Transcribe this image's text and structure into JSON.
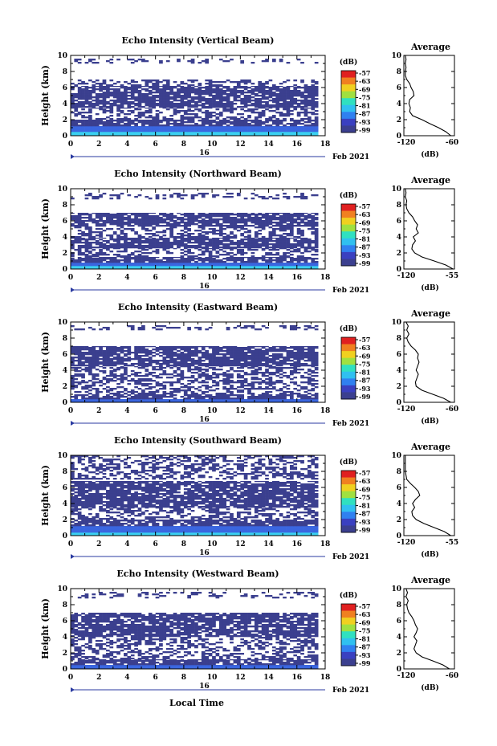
{
  "figure": {
    "xlabel": "Local Time",
    "date_day": "16",
    "date_month_year": "Feb 2021"
  },
  "chart_data": [
    {
      "type": "heatmap",
      "title": "Echo Intensity (Vertical Beam)",
      "ylabel": "Height (km)",
      "xlim": [
        0,
        18
      ],
      "ylim": [
        0,
        10
      ],
      "xticks": [
        0,
        2,
        4,
        6,
        8,
        10,
        12,
        14,
        16,
        18
      ],
      "yticks": [
        0,
        2,
        4,
        6,
        8,
        10
      ],
      "data_extent_hours": 17.5,
      "colorbar": {
        "unit": "(dB)",
        "ticks": [
          "-57",
          "-63",
          "-69",
          "-75",
          "-81",
          "-87",
          "-93",
          "-99"
        ]
      },
      "layers": [
        {
          "h": [
            0.0,
            0.5
          ],
          "level": "strong"
        },
        {
          "h": [
            0.5,
            1.2
          ],
          "level": "medium"
        },
        {
          "h": [
            1.2,
            2.0
          ],
          "level": "weak"
        },
        {
          "h": [
            2.0,
            3.5
          ],
          "level": "sparse"
        },
        {
          "h": [
            3.5,
            6.2
          ],
          "level": "weak"
        },
        {
          "h": [
            6.2,
            7.0
          ],
          "level": "sparse"
        },
        {
          "h": [
            9.0,
            9.6
          ],
          "level": "scattered"
        }
      ]
    },
    {
      "type": "heatmap",
      "title": "Echo Intensity (Northward Beam)",
      "ylabel": "Height (km)",
      "xlim": [
        0,
        18
      ],
      "ylim": [
        0,
        10
      ],
      "xticks": [
        0,
        2,
        4,
        6,
        8,
        10,
        12,
        14,
        16,
        18
      ],
      "yticks": [
        0,
        2,
        4,
        6,
        8,
        10
      ],
      "data_extent_hours": 17.5,
      "colorbar": {
        "unit": "(dB)",
        "ticks": [
          "-57",
          "-63",
          "-69",
          "-75",
          "-81",
          "-87",
          "-93",
          "-99"
        ]
      },
      "layers": [
        {
          "h": [
            0.0,
            0.4
          ],
          "level": "strong"
        },
        {
          "h": [
            0.4,
            0.8
          ],
          "level": "medium"
        },
        {
          "h": [
            0.8,
            1.5
          ],
          "level": "weak"
        },
        {
          "h": [
            1.5,
            2.6
          ],
          "level": "sparse"
        },
        {
          "h": [
            2.6,
            3.9
          ],
          "level": "weak"
        },
        {
          "h": [
            3.9,
            5.3
          ],
          "level": "sparse"
        },
        {
          "h": [
            5.3,
            7.0
          ],
          "level": "weak"
        },
        {
          "h": [
            8.7,
            9.5
          ],
          "level": "scattered"
        }
      ]
    },
    {
      "type": "heatmap",
      "title": "Echo Intensity (Eastward Beam)",
      "ylabel": "Height (km)",
      "xlim": [
        0,
        18
      ],
      "ylim": [
        0,
        10
      ],
      "xticks": [
        0,
        2,
        4,
        6,
        8,
        10,
        12,
        14,
        16,
        18
      ],
      "yticks": [
        0,
        2,
        4,
        6,
        8,
        10
      ],
      "data_extent_hours": 17.5,
      "colorbar": {
        "unit": "(dB)",
        "ticks": [
          "-57",
          "-63",
          "-69",
          "-75",
          "-81",
          "-87",
          "-93",
          "-99"
        ]
      },
      "layers": [
        {
          "h": [
            0.0,
            0.4
          ],
          "level": "medium"
        },
        {
          "h": [
            0.4,
            1.0
          ],
          "level": "weak"
        },
        {
          "h": [
            1.0,
            2.0
          ],
          "level": "sparse"
        },
        {
          "h": [
            2.0,
            4.5
          ],
          "level": "sparse"
        },
        {
          "h": [
            4.5,
            7.0
          ],
          "level": "weak"
        },
        {
          "h": [
            9.0,
            9.6
          ],
          "level": "scattered"
        }
      ]
    },
    {
      "type": "heatmap",
      "title": "Echo Intensity (Southward Beam)",
      "ylabel": "Height (km)",
      "xlim": [
        0,
        18
      ],
      "ylim": [
        0,
        10
      ],
      "xticks": [
        0,
        2,
        4,
        6,
        8,
        10,
        12,
        14,
        16,
        18
      ],
      "yticks": [
        0,
        2,
        4,
        6,
        8,
        10
      ],
      "data_extent_hours": 17.5,
      "colorbar": {
        "unit": "(dB)",
        "ticks": [
          "-57",
          "-63",
          "-69",
          "-75",
          "-81",
          "-87",
          "-93",
          "-99"
        ]
      },
      "layers": [
        {
          "h": [
            0.0,
            0.4
          ],
          "level": "strong"
        },
        {
          "h": [
            0.4,
            1.2
          ],
          "level": "medium"
        },
        {
          "h": [
            1.2,
            2.0
          ],
          "level": "weak"
        },
        {
          "h": [
            2.0,
            3.5
          ],
          "level": "sparse"
        },
        {
          "h": [
            3.5,
            6.8
          ],
          "level": "weak"
        },
        {
          "h": [
            7.0,
            10.0
          ],
          "level": "sparse"
        }
      ]
    },
    {
      "type": "heatmap",
      "title": "Echo Intensity (Westward Beam)",
      "ylabel": "Height (km)",
      "xlim": [
        0,
        18
      ],
      "ylim": [
        0,
        10
      ],
      "xticks": [
        0,
        2,
        4,
        6,
        8,
        10,
        12,
        14,
        16,
        18
      ],
      "yticks": [
        0,
        2,
        4,
        6,
        8,
        10
      ],
      "data_extent_hours": 17.5,
      "colorbar": {
        "unit": "(dB)",
        "ticks": [
          "-57",
          "-63",
          "-69",
          "-75",
          "-81",
          "-87",
          "-93",
          "-99"
        ]
      },
      "layers": [
        {
          "h": [
            0.0,
            0.5
          ],
          "level": "medium"
        },
        {
          "h": [
            0.5,
            1.2
          ],
          "level": "weak"
        },
        {
          "h": [
            1.2,
            2.0
          ],
          "level": "sparse"
        },
        {
          "h": [
            2.0,
            4.0
          ],
          "level": "sparse"
        },
        {
          "h": [
            4.0,
            7.0
          ],
          "level": "weak"
        },
        {
          "h": [
            8.8,
            9.6
          ],
          "level": "scattered"
        }
      ]
    }
  ],
  "profiles": [
    {
      "type": "line",
      "title": "Average",
      "xlabel": "(dB)",
      "xlim": [
        -120,
        -50
      ],
      "ylim": [
        0,
        10
      ],
      "xtick_labels": [
        "-120",
        "-60"
      ],
      "yticks": [
        0,
        2,
        4,
        6,
        8,
        10
      ],
      "x": [
        -55,
        -62,
        -72,
        -84,
        -95,
        -108,
        -112,
        -111,
        -113,
        -112,
        -106,
        -107,
        -110,
        -112,
        -116,
        -118,
        -118,
        -117,
        -118,
        -117,
        -118
      ],
      "y": [
        0,
        0.5,
        1.0,
        1.5,
        2.0,
        2.5,
        3.0,
        3.5,
        4.0,
        4.5,
        5.0,
        5.5,
        6.0,
        6.5,
        7.0,
        7.5,
        8.0,
        8.5,
        9.0,
        9.5,
        10.0
      ]
    },
    {
      "type": "line",
      "title": "Average",
      "xlabel": "(dB)",
      "xlim": [
        -120,
        -50
      ],
      "ylim": [
        0,
        10
      ],
      "xtick_labels": [
        "-120",
        "-55"
      ],
      "yticks": [
        0,
        2,
        4,
        6,
        8,
        10
      ],
      "x": [
        -52,
        -62,
        -78,
        -95,
        -105,
        -109,
        -108,
        -104,
        -107,
        -100,
        -103,
        -101,
        -105,
        -108,
        -113,
        -116,
        -117,
        -116,
        -118,
        -117,
        -118
      ],
      "y": [
        0,
        0.5,
        1.0,
        1.5,
        2.0,
        2.5,
        3.0,
        3.5,
        4.0,
        4.5,
        5.0,
        5.5,
        6.0,
        6.5,
        7.0,
        7.5,
        8.0,
        8.5,
        9.0,
        9.5,
        10.0
      ]
    },
    {
      "type": "line",
      "title": "Average",
      "xlabel": "(dB)",
      "xlim": [
        -120,
        -50
      ],
      "ylim": [
        0,
        10
      ],
      "xtick_labels": [
        "-120",
        "-60"
      ],
      "yticks": [
        0,
        2,
        4,
        6,
        8,
        10
      ],
      "x": [
        -55,
        -65,
        -80,
        -95,
        -103,
        -104,
        -102,
        -100,
        -103,
        -101,
        -99,
        -101,
        -100,
        -104,
        -110,
        -114,
        -116,
        -113,
        -116,
        -114,
        -117
      ],
      "y": [
        0,
        0.5,
        1.0,
        1.5,
        2.0,
        2.5,
        3.0,
        3.5,
        4.0,
        4.5,
        5.0,
        5.5,
        6.0,
        6.5,
        7.0,
        7.5,
        8.0,
        8.5,
        9.0,
        9.5,
        10.0
      ]
    },
    {
      "type": "line",
      "title": "Average",
      "xlabel": "(dB)",
      "xlim": [
        -120,
        -50
      ],
      "ylim": [
        0,
        10
      ],
      "xtick_labels": [
        "-120",
        "-55"
      ],
      "yticks": [
        0,
        2,
        4,
        6,
        8,
        10
      ],
      "x": [
        -55,
        -64,
        -78,
        -92,
        -103,
        -108,
        -109,
        -105,
        -108,
        -104,
        -98,
        -100,
        -105,
        -111,
        -116,
        -117,
        -118,
        -118,
        -118,
        -118,
        -118
      ],
      "y": [
        0,
        0.5,
        1.0,
        1.5,
        2.0,
        2.5,
        3.0,
        3.5,
        4.0,
        4.5,
        5.0,
        5.5,
        6.0,
        6.5,
        7.0,
        7.5,
        8.0,
        8.5,
        9.0,
        9.5,
        10.0
      ]
    },
    {
      "type": "line",
      "title": "Average",
      "xlabel": "(dB)",
      "xlim": [
        -120,
        -50
      ],
      "ylim": [
        0,
        10
      ],
      "xtick_labels": [
        "-120",
        "-60"
      ],
      "yticks": [
        0,
        2,
        4,
        6,
        8,
        10
      ],
      "x": [
        -57,
        -66,
        -80,
        -95,
        -103,
        -106,
        -104,
        -102,
        -106,
        -103,
        -101,
        -104,
        -106,
        -109,
        -113,
        -115,
        -116,
        -114,
        -117,
        -115,
        -117
      ],
      "y": [
        0,
        0.5,
        1.0,
        1.5,
        2.0,
        2.5,
        3.0,
        3.5,
        4.0,
        4.5,
        5.0,
        5.5,
        6.0,
        6.5,
        7.0,
        7.5,
        8.0,
        8.5,
        9.0,
        9.5,
        10.0
      ]
    }
  ],
  "colors": {
    "strong": "#3ad0f0",
    "medium": "#3a66e0",
    "weak": "#3b3f8f",
    "sparse": "#3b3f8f",
    "scattered": "#3b3f8f",
    "date_marker": "#2a3aa0",
    "colorbar": [
      "#e02020",
      "#f08020",
      "#f0d020",
      "#a0e040",
      "#30e0c0",
      "#30c0f0",
      "#3080f0",
      "#3a40c0",
      "#3b3f8f"
    ]
  }
}
